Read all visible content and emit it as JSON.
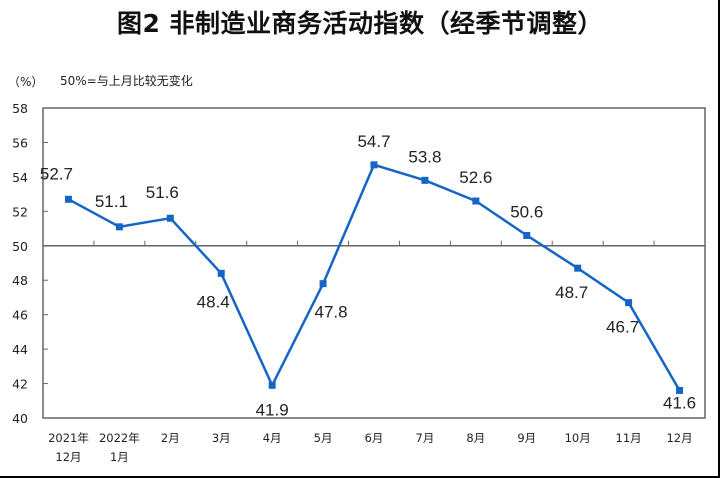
{
  "title": "图2  非制造业商务活动指数（经季节调整）",
  "unit_label": "（%）",
  "note": "50%=与上月比较无变化",
  "colors": {
    "line": "#1565C8",
    "axis": "#666666",
    "text": "#222222"
  },
  "chart_data": {
    "type": "line",
    "title": "图2  非制造业商务活动指数（经季节调整）",
    "xlabel": "",
    "ylabel": "（%）",
    "annotation": "50%=与上月比较无变化",
    "categories": [
      "2021年\n12月",
      "2022年\n1月",
      "2月",
      "3月",
      "4月",
      "5月",
      "6月",
      "7月",
      "8月",
      "9月",
      "10月",
      "11月",
      "12月"
    ],
    "series": [
      {
        "name": "非制造业商务活动指数",
        "values": [
          52.7,
          51.1,
          51.6,
          48.4,
          41.9,
          47.8,
          54.7,
          53.8,
          52.6,
          50.6,
          48.7,
          46.7,
          41.6
        ]
      }
    ],
    "ylim": [
      40,
      58
    ],
    "yticks": [
      40,
      42,
      44,
      46,
      48,
      50,
      52,
      54,
      56,
      58
    ],
    "reference_line": 50,
    "grid": false,
    "legend": "none",
    "data_labels": [
      "52.7",
      "51.1",
      "51.6",
      "48.4",
      "41.9",
      "47.8",
      "54.7",
      "53.8",
      "52.6",
      "50.6",
      "48.7",
      "46.7",
      "41.6"
    ],
    "label_positions": [
      "above",
      "above",
      "above",
      "below",
      "below",
      "below",
      "above",
      "above",
      "above",
      "above",
      "below",
      "below",
      "below"
    ]
  }
}
